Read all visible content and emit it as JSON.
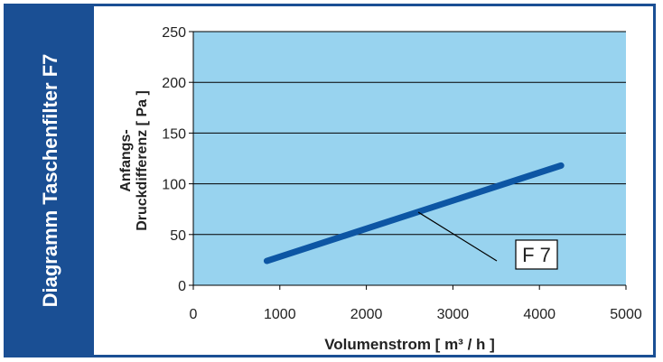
{
  "sidebar": {
    "title": "Diagramm Taschenfilter F7"
  },
  "colors": {
    "frame": "#1a4f94",
    "plot_bg": "#98d3ef",
    "line": "#0d56a4",
    "grid": "#000000"
  },
  "chart_data": {
    "type": "line",
    "title": "",
    "xlabel": "Volumenstrom [ m³ / h ]",
    "ylabel_line1": "Anfangs-",
    "ylabel_line2": "Druckdifferenz [ Pa ]",
    "xlim": [
      0,
      5000
    ],
    "ylim": [
      0,
      250
    ],
    "xticks": [
      0,
      1000,
      2000,
      3000,
      4000,
      5000
    ],
    "yticks": [
      0,
      50,
      100,
      150,
      200,
      250
    ],
    "grid": "horizontal",
    "series": [
      {
        "name": "F 7",
        "x": [
          850,
          4250
        ],
        "y": [
          24,
          118
        ]
      }
    ],
    "annotation": {
      "label": "F 7",
      "points_to": [
        2600,
        72
      ]
    }
  }
}
